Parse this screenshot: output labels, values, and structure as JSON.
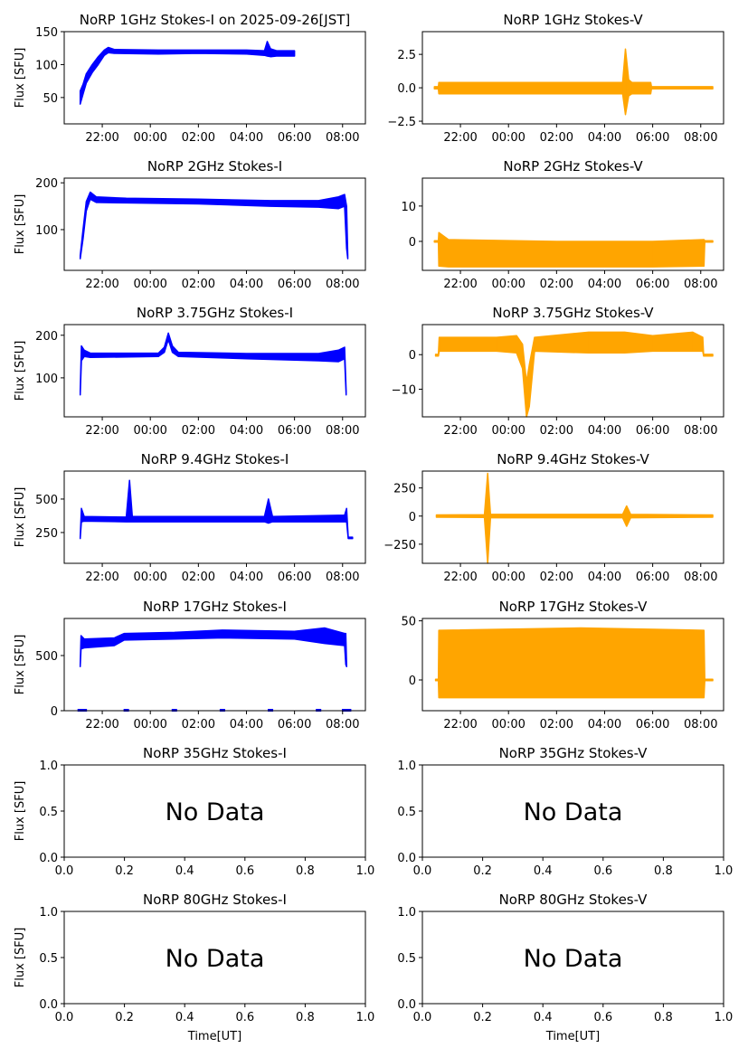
{
  "figure": {
    "xlabel": "Time[UT]",
    "ylabel": "Flux [SFU]",
    "no_data_text": "No Data"
  },
  "colors": {
    "stokes_i": "#0000ff",
    "stokes_v": "#ffa500"
  },
  "chart_data": [
    {
      "type": "scatter",
      "title": "NoRP 1GHz Stokes-I on 2025-09-26[JST]",
      "ylabel": "Flux [SFU]",
      "xlim": [
        "20:25",
        "08:57"
      ],
      "ylim": [
        10,
        150
      ],
      "xticks": [
        "22:00",
        "00:00",
        "02:00",
        "04:00",
        "06:00",
        "08:00"
      ],
      "yticks": [
        50,
        100,
        150
      ],
      "ytick_labels": [
        "50",
        "100",
        "150"
      ],
      "color": "#0000ff",
      "envelope": [
        [
          "21:05",
          40,
          60
        ],
        [
          "21:12",
          55,
          70
        ],
        [
          "21:20",
          72,
          86
        ],
        [
          "21:35",
          88,
          100
        ],
        [
          "21:50",
          100,
          112
        ],
        [
          "22:05",
          114,
          122
        ],
        [
          "22:15",
          118,
          126
        ],
        [
          "22:30",
          117,
          123
        ],
        [
          "00:20",
          116,
          122
        ],
        [
          "02:00",
          117,
          122
        ],
        [
          "04:00",
          116,
          122
        ],
        [
          "04:45",
          114,
          121
        ],
        [
          "04:52",
          113,
          135
        ],
        [
          "05:00",
          112,
          124
        ],
        [
          "05:15",
          113,
          121
        ],
        [
          "06:00",
          113,
          121
        ]
      ]
    },
    {
      "type": "scatter",
      "title": "NoRP 1GHz Stokes-V",
      "ylabel": "",
      "xlim": [
        "20:25",
        "08:57"
      ],
      "ylim": [
        -2.7,
        4.2
      ],
      "xticks": [
        "22:00",
        "00:00",
        "02:00",
        "04:00",
        "06:00",
        "08:00"
      ],
      "yticks": [
        -2.5,
        0,
        2.5
      ],
      "ytick_labels": [
        "−2.5",
        "0.0",
        "2.5"
      ],
      "color": "#ffa500",
      "envelope": [
        [
          "20:55",
          -0.08,
          0.08
        ],
        [
          "21:05",
          -0.08,
          0.08
        ],
        [
          "21:06",
          -0.45,
          0.4
        ],
        [
          "04:45",
          -0.45,
          0.4
        ],
        [
          "04:52",
          -2.0,
          2.9
        ],
        [
          "05:00",
          -0.6,
          0.6
        ],
        [
          "05:08",
          -0.45,
          0.4
        ],
        [
          "05:55",
          -0.45,
          0.4
        ],
        [
          "05:57",
          -0.08,
          0.08
        ],
        [
          "08:30",
          -0.08,
          0.08
        ]
      ]
    },
    {
      "type": "scatter",
      "title": "NoRP 2GHz Stokes-I",
      "ylabel": "Flux [SFU]",
      "xlim": [
        "20:25",
        "08:57"
      ],
      "ylim": [
        13,
        210
      ],
      "xticks": [
        "22:00",
        "00:00",
        "02:00",
        "04:00",
        "06:00",
        "08:00"
      ],
      "yticks": [
        100,
        200
      ],
      "ytick_labels": [
        "100",
        "200"
      ],
      "color": "#0000ff",
      "envelope": [
        [
          "21:05",
          38,
          45
        ],
        [
          "21:12",
          80,
          100
        ],
        [
          "21:20",
          140,
          160
        ],
        [
          "21:30",
          165,
          180
        ],
        [
          "21:45",
          158,
          170
        ],
        [
          "23:00",
          157,
          167
        ],
        [
          "02:00",
          155,
          165
        ],
        [
          "05:00",
          150,
          162
        ],
        [
          "07:00",
          148,
          162
        ],
        [
          "07:50",
          145,
          170
        ],
        [
          "08:05",
          150,
          175
        ],
        [
          "08:10",
          60,
          150
        ],
        [
          "08:13",
          38,
          45
        ]
      ]
    },
    {
      "type": "scatter",
      "title": "NoRP 2GHz Stokes-V",
      "ylabel": "",
      "xlim": [
        "20:25",
        "08:57"
      ],
      "ylim": [
        -8.2,
        17.9
      ],
      "xticks": [
        "22:00",
        "00:00",
        "02:00",
        "04:00",
        "06:00",
        "08:00"
      ],
      "yticks": [
        0,
        10
      ],
      "ytick_labels": [
        "0",
        "10"
      ],
      "color": "#ffa500",
      "envelope": [
        [
          "20:55",
          -0.2,
          0.2
        ],
        [
          "21:05",
          -0.2,
          0.2
        ],
        [
          "21:06",
          -7,
          2.5
        ],
        [
          "21:30",
          -7.2,
          0.5
        ],
        [
          "02:00",
          -7.2,
          0
        ],
        [
          "06:00",
          -7.2,
          0
        ],
        [
          "08:08",
          -7,
          0.5
        ],
        [
          "08:10",
          -0.2,
          0.2
        ],
        [
          "08:30",
          -0.2,
          0.2
        ]
      ]
    },
    {
      "type": "scatter",
      "title": "NoRP 3.75GHz Stokes-I",
      "ylabel": "Flux [SFU]",
      "xlim": [
        "20:25",
        "08:57"
      ],
      "ylim": [
        8.5,
        225
      ],
      "xticks": [
        "22:00",
        "00:00",
        "02:00",
        "04:00",
        "06:00",
        "08:00"
      ],
      "yticks": [
        100,
        200
      ],
      "ytick_labels": [
        "100",
        "200"
      ],
      "color": "#0000ff",
      "envelope": [
        [
          "21:05",
          60,
          70
        ],
        [
          "21:08",
          140,
          175
        ],
        [
          "21:15",
          150,
          165
        ],
        [
          "21:30",
          148,
          158
        ],
        [
          "00:20",
          150,
          158
        ],
        [
          "00:35",
          160,
          172
        ],
        [
          "00:45",
          190,
          205
        ],
        [
          "00:55",
          160,
          175
        ],
        [
          "01:10",
          150,
          160
        ],
        [
          "04:00",
          145,
          157
        ],
        [
          "07:00",
          140,
          157
        ],
        [
          "07:50",
          138,
          165
        ],
        [
          "08:05",
          145,
          172
        ],
        [
          "08:09",
          60,
          70
        ]
      ]
    },
    {
      "type": "scatter",
      "title": "NoRP 3.75GHz Stokes-V",
      "ylabel": "",
      "xlim": [
        "20:25",
        "08:57"
      ],
      "ylim": [
        -18,
        8.7
      ],
      "xticks": [
        "22:00",
        "00:00",
        "02:00",
        "04:00",
        "06:00",
        "08:00"
      ],
      "yticks": [
        -10,
        0
      ],
      "ytick_labels": [
        "−10",
        "0"
      ],
      "color": "#ffa500",
      "envelope": [
        [
          "20:58",
          -0.4,
          0.1
        ],
        [
          "21:05",
          -0.4,
          0.1
        ],
        [
          "21:07",
          1,
          5
        ],
        [
          "23:30",
          1,
          5
        ],
        [
          "00:20",
          0.5,
          5.5
        ],
        [
          "00:35",
          -4,
          3
        ],
        [
          "00:45",
          -18,
          -8
        ],
        [
          "00:52",
          -15,
          -3
        ],
        [
          "01:05",
          1,
          5
        ],
        [
          "03:20",
          0.5,
          6.5
        ],
        [
          "04:50",
          0.5,
          6.5
        ],
        [
          "06:00",
          1,
          5.5
        ],
        [
          "07:40",
          1,
          6.5
        ],
        [
          "08:05",
          1,
          5
        ],
        [
          "08:07",
          -0.4,
          0.1
        ],
        [
          "08:30",
          -0.4,
          0.1
        ]
      ]
    },
    {
      "type": "scatter",
      "title": "NoRP 9.4GHz Stokes-I",
      "ylabel": "Flux [SFU]",
      "xlim": [
        "20:25",
        "08:57"
      ],
      "ylim": [
        20,
        709
      ],
      "xticks": [
        "22:00",
        "00:00",
        "02:00",
        "04:00",
        "06:00",
        "08:00"
      ],
      "yticks": [
        250,
        500
      ],
      "ytick_labels": [
        "250",
        "500"
      ],
      "color": "#0000ff",
      "envelope": [
        [
          "21:05",
          205,
          215
        ],
        [
          "21:08",
          330,
          430
        ],
        [
          "21:15",
          335,
          370
        ],
        [
          "23:00",
          330,
          365
        ],
        [
          "23:08",
          330,
          640
        ],
        [
          "23:15",
          330,
          370
        ],
        [
          "04:45",
          330,
          370
        ],
        [
          "04:55",
          320,
          500
        ],
        [
          "05:05",
          330,
          370
        ],
        [
          "08:05",
          330,
          380
        ],
        [
          "08:10",
          330,
          430
        ],
        [
          "08:14",
          205,
          215
        ],
        [
          "08:25",
          205,
          215
        ]
      ]
    },
    {
      "type": "scatter",
      "title": "NoRP 9.4GHz Stokes-V",
      "ylabel": "",
      "xlim": [
        "20:25",
        "08:57"
      ],
      "ylim": [
        -420,
        400
      ],
      "xticks": [
        "22:00",
        "00:00",
        "02:00",
        "04:00",
        "06:00",
        "08:00"
      ],
      "yticks": [
        -250,
        0,
        250
      ],
      "ytick_labels": [
        "−250",
        "0",
        "250"
      ],
      "color": "#ffa500",
      "envelope": [
        [
          "21:00",
          -10,
          10
        ],
        [
          "23:00",
          -12,
          12
        ],
        [
          "23:08",
          -420,
          380
        ],
        [
          "23:15",
          -15,
          15
        ],
        [
          "04:45",
          -15,
          15
        ],
        [
          "04:55",
          -90,
          90
        ],
        [
          "05:05",
          -15,
          15
        ],
        [
          "08:30",
          -10,
          10
        ]
      ]
    },
    {
      "type": "scatter",
      "title": "NoRP 17GHz Stokes-I",
      "ylabel": "Flux [SFU]",
      "xlim": [
        "20:25",
        "08:57"
      ],
      "ylim": [
        0,
        836
      ],
      "xticks": [
        "22:00",
        "00:00",
        "02:00",
        "04:00",
        "06:00",
        "08:00"
      ],
      "yticks": [
        0,
        500
      ],
      "ytick_labels": [
        "0",
        "500"
      ],
      "color": "#0000ff",
      "envelope": [
        [
          "21:05",
          400,
          420
        ],
        [
          "21:07",
          560,
          680
        ],
        [
          "21:15",
          570,
          650
        ],
        [
          "22:30",
          590,
          660
        ],
        [
          "22:55",
          640,
          700
        ],
        [
          "01:00",
          650,
          710
        ],
        [
          "03:00",
          660,
          730
        ],
        [
          "06:00",
          650,
          720
        ],
        [
          "07:15",
          610,
          750
        ],
        [
          "08:05",
          590,
          700
        ],
        [
          "08:08",
          420,
          700
        ],
        [
          "08:10",
          400,
          420
        ]
      ],
      "zero_points": [
        "21:05",
        "21:15",
        "23:00",
        "01:00",
        "03:00",
        "05:00",
        "07:00",
        "08:05",
        "08:15"
      ]
    },
    {
      "type": "scatter",
      "title": "NoRP 17GHz Stokes-V",
      "ylabel": "",
      "xlim": [
        "20:25",
        "08:57"
      ],
      "ylim": [
        -26,
        52
      ],
      "xticks": [
        "22:00",
        "00:00",
        "02:00",
        "04:00",
        "06:00",
        "08:00"
      ],
      "yticks": [
        0,
        50
      ],
      "ytick_labels": [
        "0",
        "50"
      ],
      "color": "#ffa500",
      "envelope": [
        [
          "20:58",
          -0.5,
          0.5
        ],
        [
          "21:05",
          -0.5,
          0.5
        ],
        [
          "21:06",
          -15,
          42
        ],
        [
          "03:00",
          -15,
          44
        ],
        [
          "08:08",
          -15,
          42
        ],
        [
          "08:10",
          -0.5,
          0.5
        ],
        [
          "08:30",
          -0.5,
          0.5
        ]
      ]
    },
    {
      "type": "scatter",
      "title": "NoRP 35GHz Stokes-I",
      "ylabel": "Flux [SFU]",
      "empty": true,
      "xlim": [
        0,
        1
      ],
      "ylim": [
        0,
        1
      ],
      "xtick_labels": [
        "0.0",
        "0.2",
        "0.4",
        "0.6",
        "0.8",
        "1.0"
      ],
      "ytick_labels": [
        "0.0",
        "0.5",
        "1.0"
      ]
    },
    {
      "type": "scatter",
      "title": "NoRP 35GHz Stokes-V",
      "ylabel": "",
      "empty": true,
      "xlim": [
        0,
        1
      ],
      "ylim": [
        0,
        1
      ],
      "xtick_labels": [
        "0.0",
        "0.2",
        "0.4",
        "0.6",
        "0.8",
        "1.0"
      ],
      "ytick_labels": [
        "0.0",
        "0.5",
        "1.0"
      ]
    },
    {
      "type": "scatter",
      "title": "NoRP 80GHz Stokes-I",
      "ylabel": "Flux [SFU]",
      "xlabel": "Time[UT]",
      "empty": true,
      "xlim": [
        0,
        1
      ],
      "ylim": [
        0,
        1
      ],
      "xtick_labels": [
        "0.0",
        "0.2",
        "0.4",
        "0.6",
        "0.8",
        "1.0"
      ],
      "ytick_labels": [
        "0.0",
        "0.5",
        "1.0"
      ]
    },
    {
      "type": "scatter",
      "title": "NoRP 80GHz Stokes-V",
      "ylabel": "",
      "xlabel": "Time[UT]",
      "empty": true,
      "xlim": [
        0,
        1
      ],
      "ylim": [
        0,
        1
      ],
      "xtick_labels": [
        "0.0",
        "0.2",
        "0.4",
        "0.6",
        "0.8",
        "1.0"
      ],
      "ytick_labels": [
        "0.0",
        "0.5",
        "1.0"
      ]
    }
  ]
}
